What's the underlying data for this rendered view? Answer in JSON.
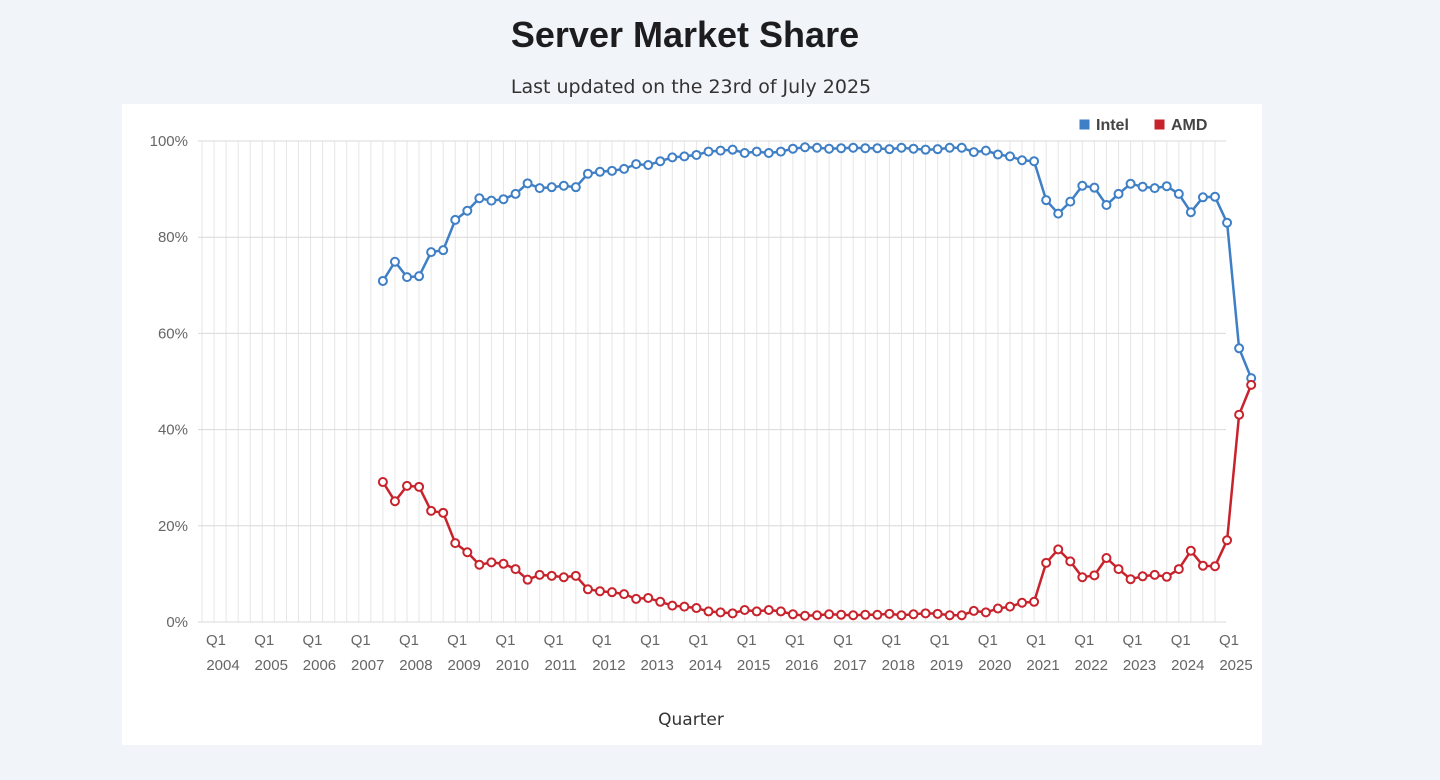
{
  "title": "Server Market Share",
  "subtitle": "Last updated on the 23rd of July 2025",
  "chart_data": {
    "type": "line",
    "title": "Server Market Share",
    "subtitle": "Last updated on the 23rd of July 2025",
    "xlabel": "Quarter",
    "ylabel": "",
    "ylim": [
      0,
      100
    ],
    "yticks": [
      "0%",
      "20%",
      "40%",
      "60%",
      "80%",
      "100%"
    ],
    "x_range": [
      "Q1 2004",
      "Q1 2025"
    ],
    "x_ticks": [
      {
        "q": "Q1",
        "y": "2004"
      },
      {
        "q": "Q1",
        "y": "2005"
      },
      {
        "q": "Q1",
        "y": "2006"
      },
      {
        "q": "Q1",
        "y": "2007"
      },
      {
        "q": "Q1",
        "y": "2008"
      },
      {
        "q": "Q1",
        "y": "2009"
      },
      {
        "q": "Q1",
        "y": "2010"
      },
      {
        "q": "Q1",
        "y": "2011"
      },
      {
        "q": "Q1",
        "y": "2012"
      },
      {
        "q": "Q1",
        "y": "2013"
      },
      {
        "q": "Q1",
        "y": "2014"
      },
      {
        "q": "Q1",
        "y": "2015"
      },
      {
        "q": "Q1",
        "y": "2016"
      },
      {
        "q": "Q1",
        "y": "2017"
      },
      {
        "q": "Q1",
        "y": "2018"
      },
      {
        "q": "Q1",
        "y": "2019"
      },
      {
        "q": "Q1",
        "y": "2020"
      },
      {
        "q": "Q1",
        "y": "2021"
      },
      {
        "q": "Q1",
        "y": "2022"
      },
      {
        "q": "Q1",
        "y": "2023"
      },
      {
        "q": "Q1",
        "y": "2024"
      },
      {
        "q": "Q1",
        "y": "2025"
      }
    ],
    "grid": true,
    "legend": "top-right",
    "start_quarter": "Q4 2007",
    "series": [
      {
        "name": "Intel",
        "color": "#3f7fc5",
        "values": [
          70.9,
          74.9,
          71.7,
          71.9,
          76.9,
          77.3,
          83.6,
          85.5,
          88.1,
          87.6,
          87.9,
          89.0,
          91.2,
          90.2,
          90.4,
          90.7,
          90.4,
          93.2,
          93.6,
          93.8,
          94.2,
          95.2,
          95.0,
          95.8,
          96.6,
          96.8,
          97.1,
          97.8,
          98.0,
          98.2,
          97.5,
          97.8,
          97.5,
          97.8,
          98.4,
          98.7,
          98.6,
          98.4,
          98.5,
          98.6,
          98.5,
          98.5,
          98.3,
          98.6,
          98.4,
          98.2,
          98.3,
          98.6,
          98.6,
          97.7,
          98.0,
          97.2,
          96.8,
          96.0,
          95.8,
          87.7,
          84.9,
          87.4,
          90.7,
          90.3,
          86.7,
          89.0,
          91.1,
          90.5,
          90.2,
          90.6,
          89.0,
          85.2,
          88.3,
          88.4,
          83.0,
          56.9,
          50.7
        ]
      },
      {
        "name": "AMD",
        "color": "#c8232c",
        "values": [
          29.1,
          25.1,
          28.3,
          28.1,
          23.1,
          22.7,
          16.4,
          14.5,
          11.9,
          12.4,
          12.1,
          11.0,
          8.8,
          9.8,
          9.6,
          9.3,
          9.6,
          6.8,
          6.4,
          6.2,
          5.8,
          4.8,
          5.0,
          4.2,
          3.4,
          3.2,
          2.9,
          2.2,
          2.0,
          1.8,
          2.5,
          2.2,
          2.5,
          2.2,
          1.6,
          1.3,
          1.4,
          1.6,
          1.5,
          1.4,
          1.5,
          1.5,
          1.7,
          1.4,
          1.6,
          1.8,
          1.7,
          1.4,
          1.4,
          2.3,
          2.0,
          2.8,
          3.2,
          4.0,
          4.2,
          12.3,
          15.1,
          12.6,
          9.3,
          9.7,
          13.3,
          11.0,
          8.9,
          9.5,
          9.8,
          9.4,
          11.0,
          14.8,
          11.7,
          11.6,
          17.0,
          43.1,
          49.3
        ]
      }
    ]
  }
}
